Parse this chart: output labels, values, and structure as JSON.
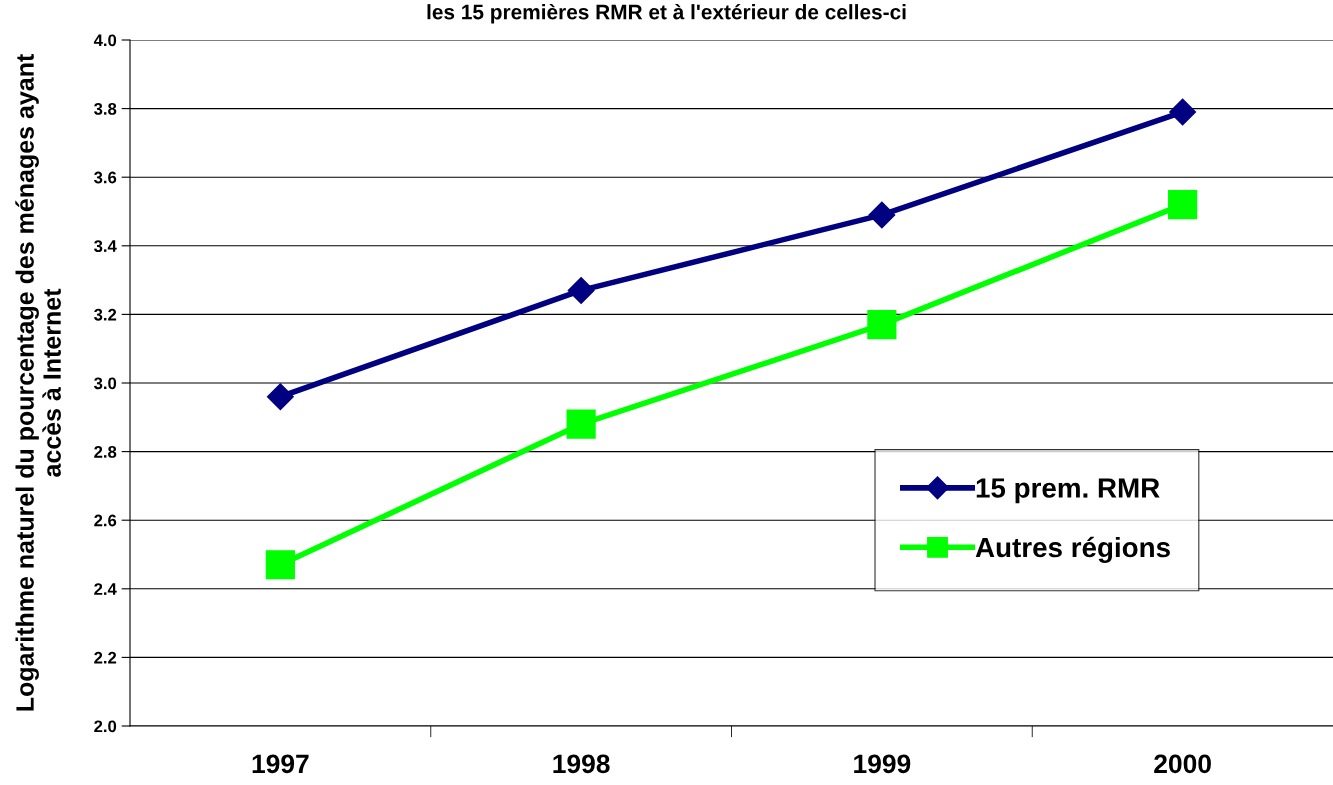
{
  "chart_data": {
    "type": "line",
    "title": "les 15 premières RMR et à l'extérieur de celles-ci",
    "ylabel": "Logarithme naturel du pourcentage des ménages ayant\naccès à Internet",
    "categories": [
      "1997",
      "1998",
      "1999",
      "2000"
    ],
    "series": [
      {
        "name": "15 prem. RMR",
        "color": "#000080",
        "marker": "diamond",
        "values": [
          2.96,
          3.27,
          3.49,
          3.79
        ]
      },
      {
        "name": "Autres régions",
        "color": "#00ff00",
        "marker": "square",
        "values": [
          2.47,
          2.88,
          3.17,
          3.52
        ]
      }
    ],
    "ylim": [
      2.0,
      4.0
    ],
    "yticks": [
      {
        "value": 2.0,
        "label": "2.0"
      },
      {
        "value": 2.2,
        "label": "2.2"
      },
      {
        "value": 2.4,
        "label": "2.4"
      },
      {
        "value": 2.6,
        "label": "2.6"
      },
      {
        "value": 2.8,
        "label": "2.8"
      },
      {
        "value": 3.0,
        "label": "3.0"
      },
      {
        "value": 3.2,
        "label": "3.2"
      },
      {
        "value": 3.4,
        "label": "3.4"
      },
      {
        "value": 3.6,
        "label": "3.6"
      },
      {
        "value": 3.8,
        "label": "3.8"
      },
      {
        "value": 4.0,
        "label": "4.0"
      }
    ],
    "grid": "y",
    "legend": "right",
    "line_style": "solid"
  }
}
